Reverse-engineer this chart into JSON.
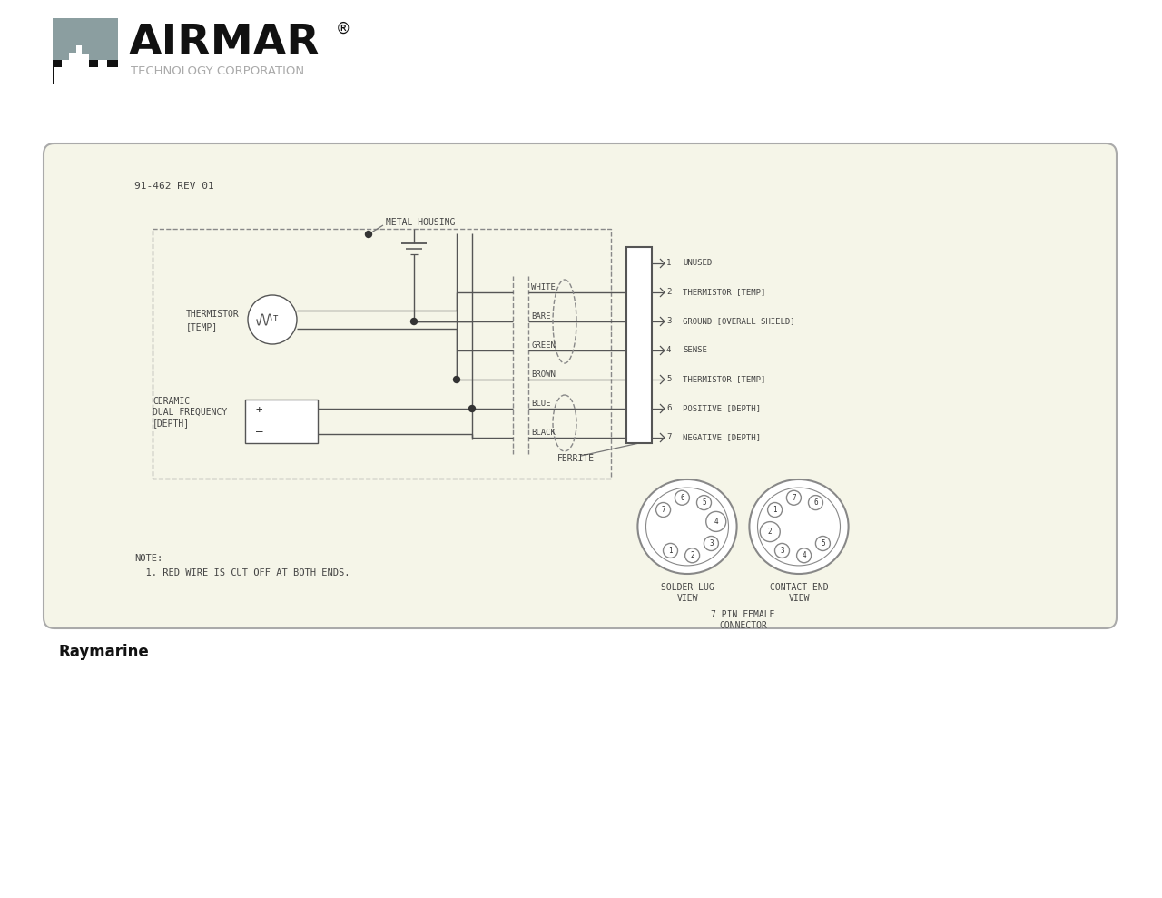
{
  "bg_color": "#F5F5E8",
  "outer_bg": "#FFFFFF",
  "lc": "#555555",
  "tc": "#444444",
  "title_text": "91-462 REV 01",
  "bottom_brand": "Raymarine",
  "pin_descriptions": [
    "UNUSED",
    "THERMISTOR [TEMP]",
    "GROUND [OVERALL SHIELD]",
    "SENSE",
    "THERMISTOR [TEMP]",
    "POSITIVE [DEPTH]",
    "NEGATIVE [DEPTH]"
  ],
  "wire_names": [
    "WHITE",
    "BARE",
    "GREEN",
    "BROWN",
    "BLUE",
    "BLACK"
  ],
  "note_line1": "NOTE:",
  "note_line2": "  1. RED WIRE IS CUT OFF AT BOTH ENDS.",
  "metal_housing_label": "METAL HOUSING",
  "ferrite_label": "FERRITE",
  "solder_lug_line1": "SOLDER LUG",
  "solder_lug_line2": "VIEW",
  "contact_end_line1": "CONTACT END",
  "contact_end_line2": "VIEW",
  "connector_line1": "7 PIN FEMALE",
  "connector_line2": "CONNECTOR",
  "thermistor_label": "THERMISTOR\n[TEMP]",
  "ceramic_line1": "CERAMIC",
  "ceramic_line2": "DUAL FREQUENCY",
  "ceramic_line3": "[DEPTH]",
  "slv_pin_nums": [
    "7",
    "6",
    "5",
    "4",
    "3",
    "2",
    "1"
  ],
  "slv_pin_angs": [
    215,
    260,
    305,
    350,
    35,
    80,
    125
  ],
  "slv_big_ang": 350,
  "cev_pin_nums": [
    "6",
    "7",
    "1",
    "2",
    "3",
    "4",
    "5"
  ],
  "cev_pin_angs": [
    305,
    260,
    215,
    170,
    125,
    80,
    35
  ],
  "cev_big_ang": 170
}
